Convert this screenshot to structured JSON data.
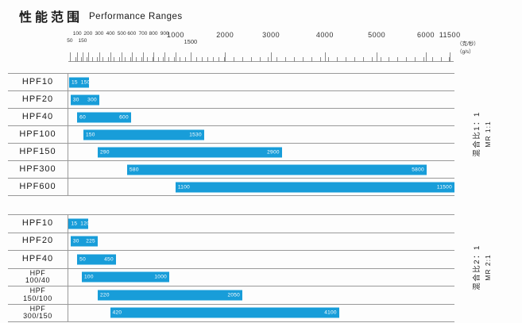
{
  "title": {
    "zh": "性能范围",
    "en": "Performance Ranges"
  },
  "colors": {
    "bar": "#189dd9",
    "line": "#999999",
    "ink": "#1a1a1a",
    "bar_text": "#ffffff",
    "background": "#fdfdfd"
  },
  "axis": {
    "unit_zh": "（克/秒）",
    "unit_en": "（g/s）",
    "ticks": [
      {
        "label": "50",
        "pct": 0.6,
        "row": "lo",
        "size": "s"
      },
      {
        "label": "100",
        "pct": 2.5,
        "row": "hi",
        "size": "s"
      },
      {
        "label": "150",
        "pct": 3.9,
        "row": "lo",
        "size": "s"
      },
      {
        "label": "200",
        "pct": 5.3,
        "row": "hi",
        "size": "s"
      },
      {
        "label": "300",
        "pct": 8.2,
        "row": "hi",
        "size": "s"
      },
      {
        "label": "400",
        "pct": 11.1,
        "row": "hi",
        "size": "s"
      },
      {
        "label": "500",
        "pct": 14.0,
        "row": "hi",
        "size": "s"
      },
      {
        "label": "600",
        "pct": 16.6,
        "row": "hi",
        "size": "s"
      },
      {
        "label": "700",
        "pct": 19.5,
        "row": "hi",
        "size": "s"
      },
      {
        "label": "800",
        "pct": 22.2,
        "row": "hi",
        "size": "s"
      },
      {
        "label": "900",
        "pct": 25.1,
        "row": "hi",
        "size": "s"
      },
      {
        "label": "1000",
        "pct": 27.9,
        "row": "hi",
        "size": "l"
      },
      {
        "label": "1500",
        "pct": 31.8,
        "row": "lo",
        "size": "m"
      },
      {
        "label": "2000",
        "pct": 40.7,
        "row": "hi",
        "size": "l"
      },
      {
        "label": "3000",
        "pct": 52.6,
        "row": "hi",
        "size": "l"
      },
      {
        "label": "4000",
        "pct": 66.5,
        "row": "hi",
        "size": "l"
      },
      {
        "label": "5000",
        "pct": 79.9,
        "row": "hi",
        "size": "l"
      },
      {
        "label": "6000",
        "pct": 92.6,
        "row": "hi",
        "size": "l"
      },
      {
        "label": "11500",
        "pct": 98.8,
        "row": "hi",
        "size": "l"
      }
    ]
  },
  "groups": [
    {
      "ratio_zh": "混合比1：1",
      "ratio_en": "MR 1:1",
      "rows": [
        {
          "label": "HPF10",
          "start_label": "15",
          "end_label": "150",
          "left_pct": 0.4,
          "right_pct": 5.6
        },
        {
          "label": "HPF20",
          "start_label": "30",
          "end_label": "300",
          "left_pct": 0.8,
          "right_pct": 8.2
        },
        {
          "label": "HPF40",
          "start_label": "60",
          "end_label": "600",
          "left_pct": 2.5,
          "right_pct": 16.4
        },
        {
          "label": "HPF100",
          "start_label": "150",
          "end_label": "1530",
          "left_pct": 4.1,
          "right_pct": 35.3
        },
        {
          "label": "HPF150",
          "start_label": "290",
          "end_label": "2900",
          "left_pct": 7.8,
          "right_pct": 55.4
        },
        {
          "label": "HPF300",
          "start_label": "580",
          "end_label": "5800",
          "left_pct": 15.4,
          "right_pct": 92.8
        },
        {
          "label": "HPF600",
          "start_label": "1100",
          "end_label": "11500",
          "left_pct": 27.9,
          "right_pct": 100
        }
      ]
    },
    {
      "ratio_zh": "混合比2：1",
      "ratio_en": "MR 2:1",
      "rows": [
        {
          "label": "HPF10",
          "start_label": "15",
          "end_label": "120",
          "left_pct": 0.3,
          "right_pct": 5.3
        },
        {
          "label": "HPF20",
          "start_label": "30",
          "end_label": "225",
          "left_pct": 0.8,
          "right_pct": 7.8
        },
        {
          "label": "HPF40",
          "start_label": "50",
          "end_label": "450",
          "left_pct": 2.5,
          "right_pct": 12.5
        },
        {
          "label": "HPF",
          "label2": "100/40",
          "start_label": "100",
          "end_label": "1000",
          "left_pct": 3.7,
          "right_pct": 26.3
        },
        {
          "label": "HPF",
          "label2": "150/100",
          "start_label": "220",
          "end_label": "2050",
          "left_pct": 7.8,
          "right_pct": 45.2
        },
        {
          "label": "HPF",
          "label2": "300/150",
          "start_label": "420",
          "end_label": "4100",
          "left_pct": 11.0,
          "right_pct": 70.2
        }
      ]
    }
  ],
  "chart_data": {
    "type": "bar",
    "orientation": "horizontal-range",
    "title": "性能范围 Performance Ranges",
    "xlabel": "克/秒 (g/s)",
    "xlim": [
      50,
      11500
    ],
    "x_ticks": [
      50,
      100,
      150,
      200,
      300,
      400,
      500,
      600,
      700,
      800,
      900,
      1000,
      1500,
      2000,
      3000,
      4000,
      5000,
      6000,
      11500
    ],
    "grid": false,
    "legend_position": "right-rotated",
    "groups": [
      {
        "mixing_ratio_zh": "混合比1：1",
        "mixing_ratio": "MR 1:1",
        "rows": [
          {
            "model": "HPF10",
            "range_g_per_s": [
              15,
              150
            ]
          },
          {
            "model": "HPF20",
            "range_g_per_s": [
              30,
              300
            ]
          },
          {
            "model": "HPF40",
            "range_g_per_s": [
              60,
              600
            ]
          },
          {
            "model": "HPF100",
            "range_g_per_s": [
              150,
              1530
            ]
          },
          {
            "model": "HPF150",
            "range_g_per_s": [
              290,
              2900
            ]
          },
          {
            "model": "HPF300",
            "range_g_per_s": [
              580,
              5800
            ]
          },
          {
            "model": "HPF600",
            "range_g_per_s": [
              1100,
              11500
            ]
          }
        ]
      },
      {
        "mixing_ratio_zh": "混合比2：1",
        "mixing_ratio": "MR 2:1",
        "rows": [
          {
            "model": "HPF10",
            "range_g_per_s": [
              15,
              120
            ]
          },
          {
            "model": "HPF20",
            "range_g_per_s": [
              30,
              225
            ]
          },
          {
            "model": "HPF40",
            "range_g_per_s": [
              50,
              450
            ]
          },
          {
            "model": "HPF 100/40",
            "range_g_per_s": [
              100,
              1000
            ]
          },
          {
            "model": "HPF 150/100",
            "range_g_per_s": [
              220,
              2050
            ]
          },
          {
            "model": "HPF 300/150",
            "range_g_per_s": [
              420,
              4100
            ]
          }
        ]
      }
    ]
  }
}
